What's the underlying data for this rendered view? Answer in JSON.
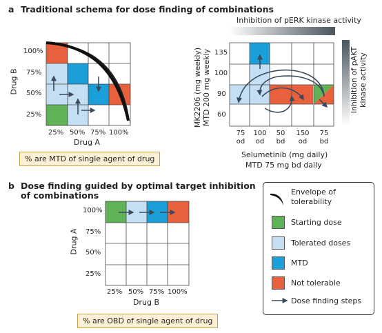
{
  "panel_a": {
    "letter": "a",
    "title": "Traditional schema for dose finding of combinations",
    "left_grid": {
      "y_axis_label": "Drug B",
      "x_axis_label": "Drug A",
      "y_ticks": [
        "100%",
        "75%",
        "50%",
        "25%"
      ],
      "x_ticks": [
        "25%",
        "50%",
        "75%",
        "100%"
      ],
      "note": "% are MTD of single agent of drug"
    },
    "right_grid": {
      "colorbar_top_label": "Inhibition of pERK kinase activity",
      "colorbar_right_label_line1": "Inhibition of pAKT",
      "colorbar_right_label_line2": "kinase activity",
      "y_axis_label_line1": "MK2206 (mg weekly)",
      "y_axis_label_line2": "MTD 200 mg weekly",
      "y_ticks": [
        "135",
        "100",
        "90",
        "60"
      ],
      "x_ticks_top": [
        "75",
        "100",
        "50",
        "150",
        "75"
      ],
      "x_ticks_bottom": [
        "od",
        "od",
        "bd",
        "od",
        "bd"
      ],
      "x_axis_label_line1": "Selumetinib (mg daily)",
      "x_axis_label_line2": "MTD 75 mg bd daily"
    }
  },
  "panel_b": {
    "letter": "b",
    "title_line1": "Dose finding guided by optimal target inhibition",
    "title_line2": "of combinations",
    "y_axis_label": "Drug A",
    "x_axis_label": "Drug B",
    "y_ticks": [
      "100%",
      "75%",
      "50%",
      "25%"
    ],
    "x_ticks": [
      "25%",
      "50%",
      "75%",
      "100%"
    ],
    "note": "% are OBD of single agent of drug"
  },
  "legend": {
    "envelope_line1": "Envelope of",
    "envelope_line2": "tolerability",
    "starting": "Starting dose",
    "tolerated": "Tolerated doses",
    "mtd": "MTD",
    "not_tolerable": "Not tolerable",
    "steps": "Dose finding steps"
  },
  "colors": {
    "starting": "#5fb356",
    "tolerated": "#c4dff4",
    "mtd": "#1a9fd9",
    "not_tolerable": "#e9603c",
    "arrow": "#3a4a5c",
    "note_bg": "#fdf1d5"
  }
}
